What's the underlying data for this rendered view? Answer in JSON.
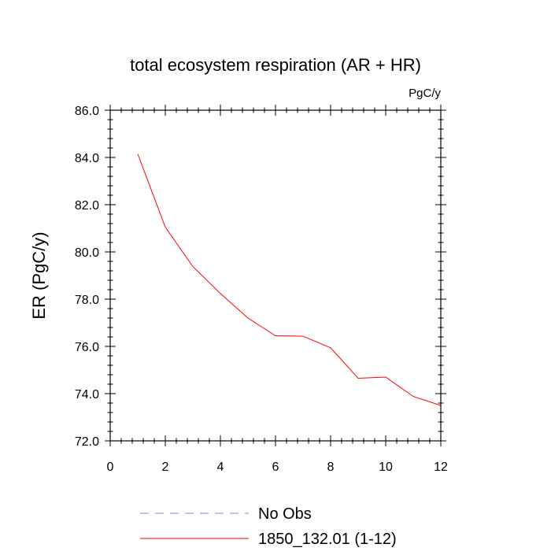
{
  "chart_data": {
    "type": "line",
    "title": "total ecosystem respiration (AR + HR)",
    "units_label": "PgC/y",
    "xlabel": "",
    "ylabel": "ER  (PgC/y)",
    "xlim": [
      0,
      12
    ],
    "ylim": [
      72,
      86
    ],
    "x_ticks": [
      0,
      2,
      4,
      6,
      8,
      10,
      12
    ],
    "x_tick_labels": [
      "0",
      "2",
      "4",
      "6",
      "8",
      "10",
      "12"
    ],
    "y_ticks": [
      72,
      74,
      76,
      78,
      80,
      82,
      84,
      86
    ],
    "y_tick_labels": [
      "72.0",
      "74.0",
      "76.0",
      "78.0",
      "80.0",
      "82.0",
      "84.0",
      "86.0"
    ],
    "grid": false,
    "legend_position": "bottom",
    "series": [
      {
        "name": "1850_132.01 (1-12)",
        "color": "#ff0000",
        "style": "solid",
        "x": [
          1,
          2,
          3,
          4,
          5,
          6,
          7,
          8,
          9,
          10,
          11,
          12
        ],
        "values": [
          84.15,
          81.05,
          79.38,
          78.24,
          77.2,
          76.45,
          76.43,
          75.94,
          74.65,
          74.7,
          73.88,
          73.5
        ]
      }
    ],
    "legend": [
      {
        "label": "No Obs",
        "color": "#8080ff",
        "style": "dashed"
      },
      {
        "label": "1850_132.01 (1-12)",
        "color": "#ff0000",
        "style": "solid"
      }
    ]
  }
}
